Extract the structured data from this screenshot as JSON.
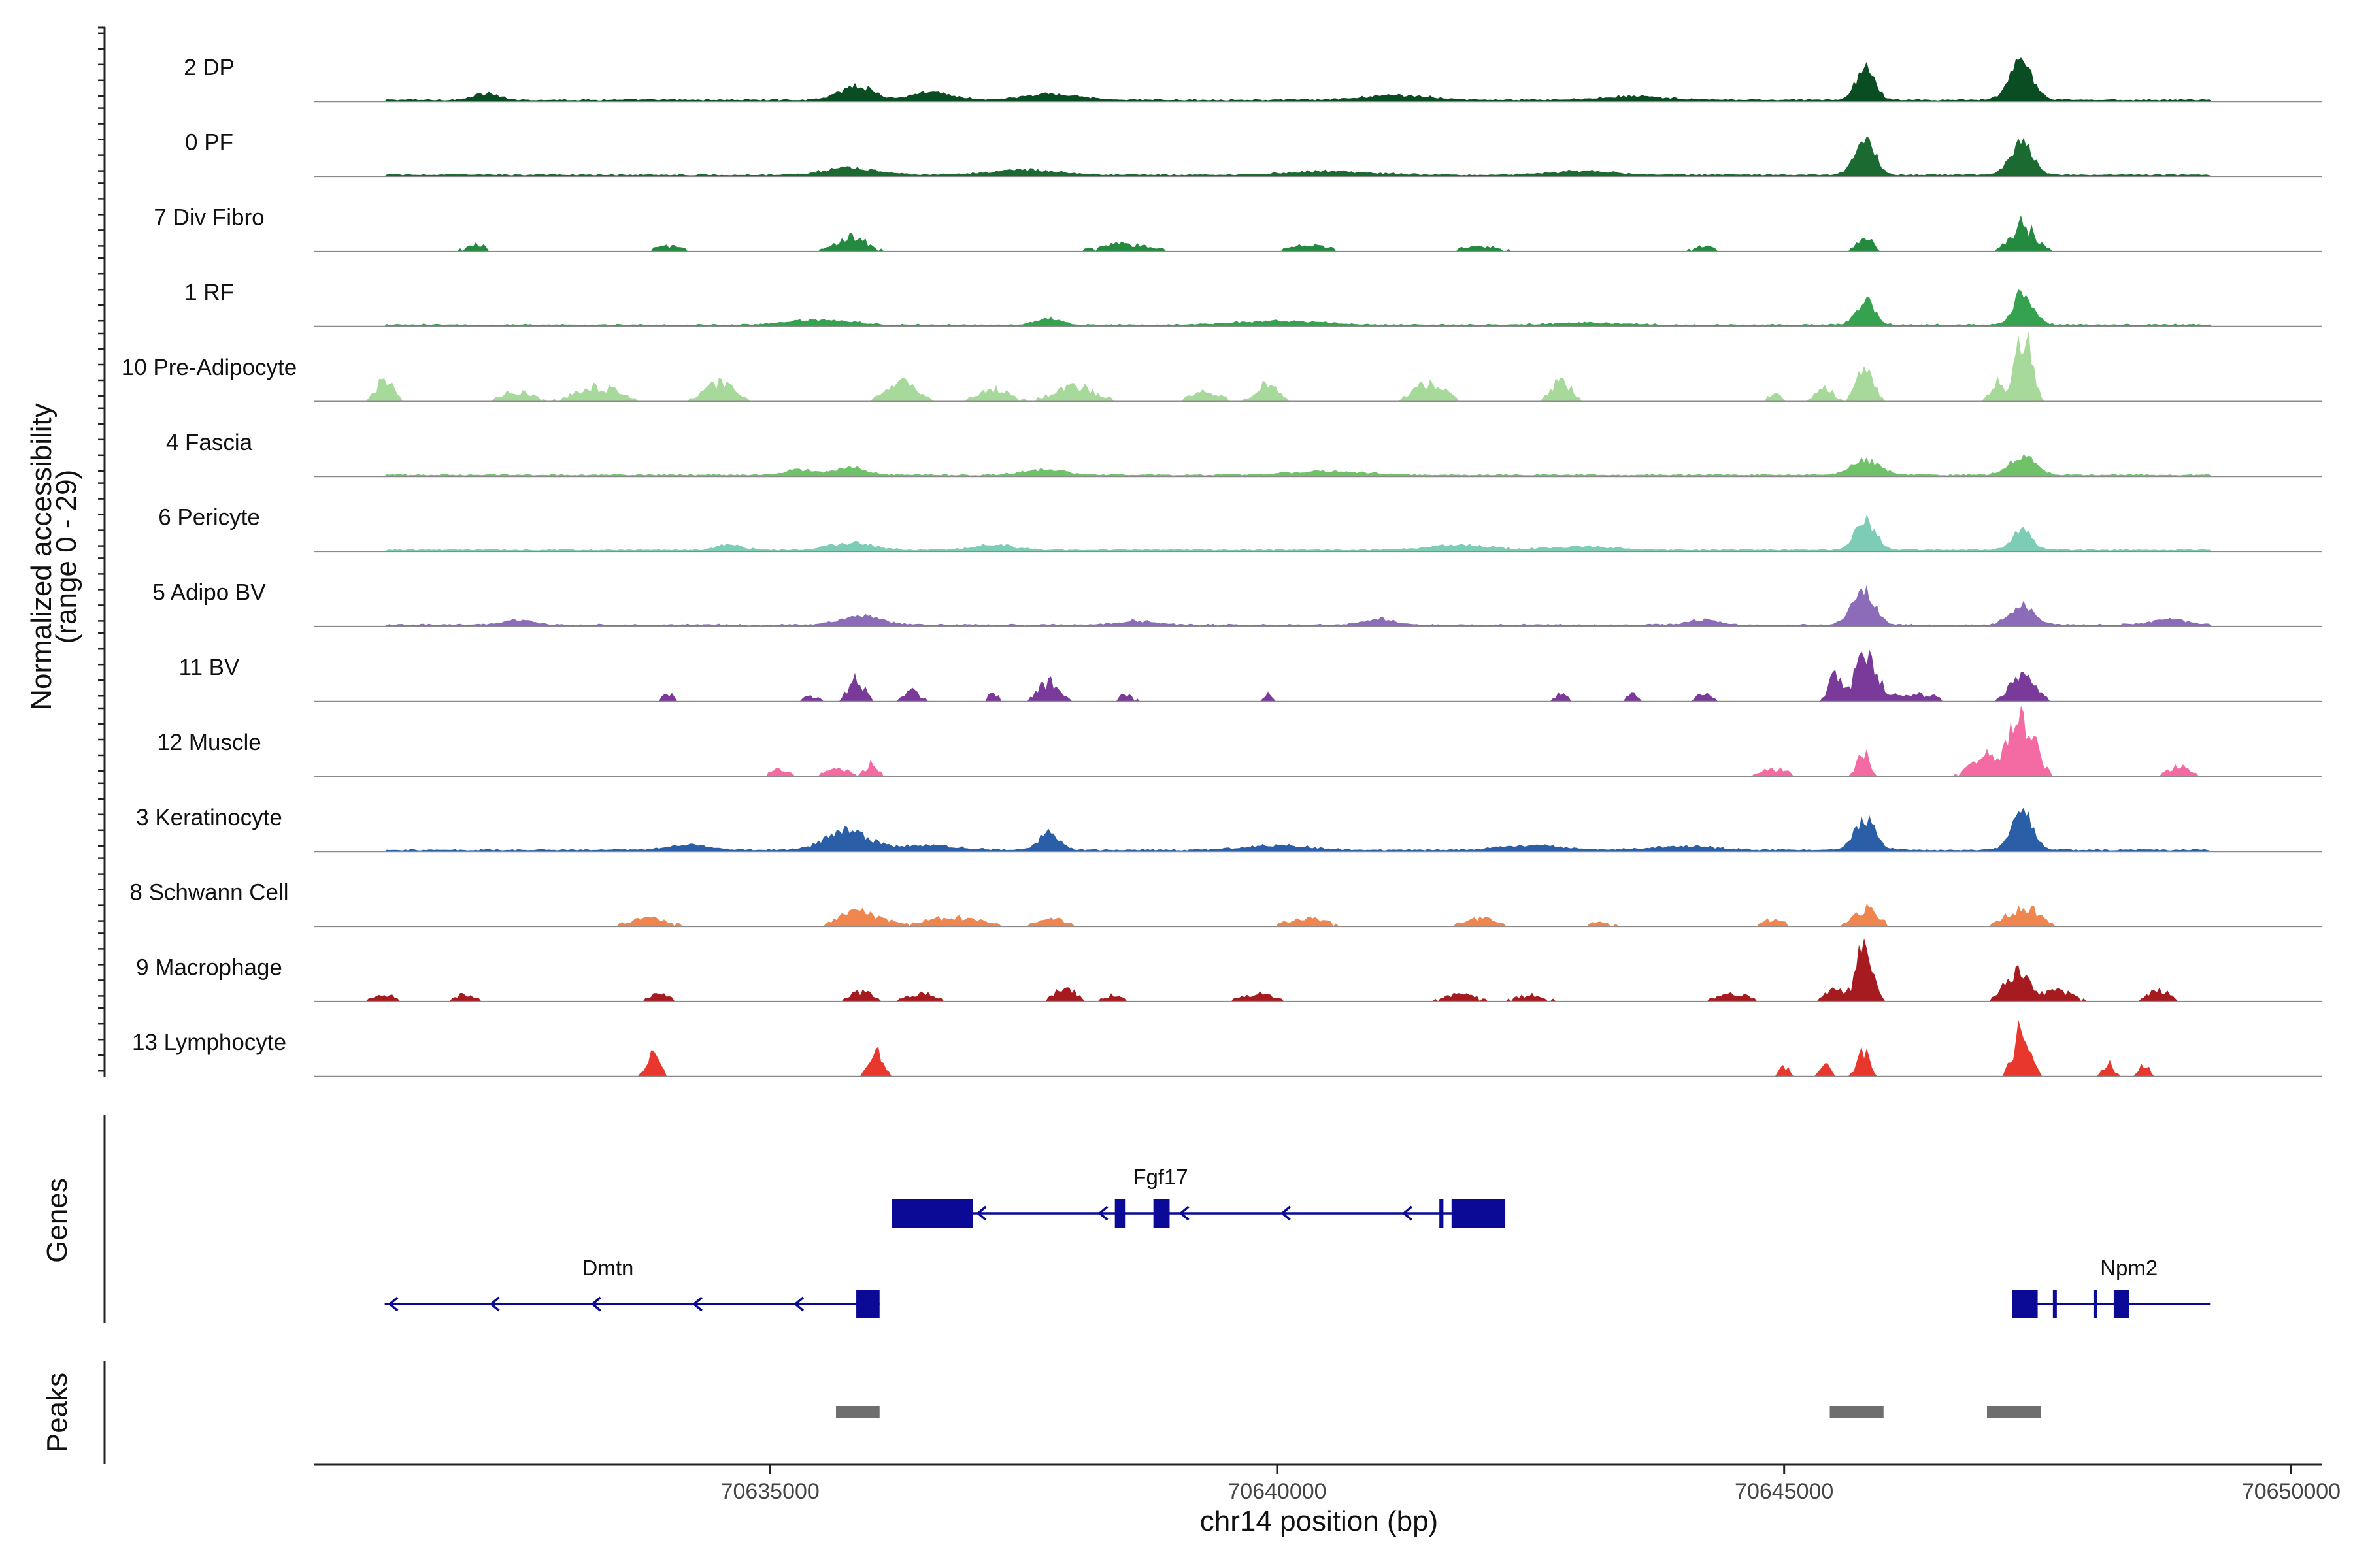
{
  "chart_data": {
    "type": "area",
    "ylabel_line1": "Normalized accessibility",
    "ylabel_line2": "(range 0 - 29)",
    "ylim": [
      0,
      29
    ],
    "xlabel": "chr14 position (bp)",
    "xlim": [
      70630500,
      70650300
    ],
    "x_ticks": [
      70635000,
      70640000,
      70645000,
      70650000
    ],
    "x_tick_labels": [
      "70635000",
      "70640000",
      "70645000",
      "70650000"
    ],
    "panel_labels": {
      "genes": "Genes",
      "peaks": "Peaks"
    },
    "tracks": [
      {
        "name": "2 DP",
        "color": "#0b4d22",
        "mode": "cont",
        "peaks": [
          [
            70645800,
            14,
            90
          ],
          [
            70647340,
            15,
            110
          ],
          [
            70635850,
            6,
            160
          ],
          [
            70636600,
            3,
            200
          ],
          [
            70632200,
            2.5,
            120
          ],
          [
            70637800,
            2.5,
            250
          ],
          [
            70641200,
            2,
            300
          ],
          [
            70643500,
            1.5,
            300
          ]
        ]
      },
      {
        "name": "0 PF",
        "color": "#1a6a32",
        "mode": "cont",
        "peaks": [
          [
            70645800,
            14,
            100
          ],
          [
            70647340,
            13,
            110
          ],
          [
            70635800,
            3,
            250
          ],
          [
            70637500,
            2,
            300
          ],
          [
            70640500,
            1.5,
            400
          ],
          [
            70643000,
            1.5,
            300
          ]
        ]
      },
      {
        "name": "7 Div Fibro",
        "color": "#238a3f",
        "mode": "spiky",
        "peaks": [
          [
            70647350,
            11,
            120
          ],
          [
            70645800,
            5,
            80
          ],
          [
            70635800,
            6,
            150
          ],
          [
            70632100,
            3,
            100
          ],
          [
            70638500,
            3,
            250
          ],
          [
            70640300,
            2.5,
            200
          ],
          [
            70642000,
            2,
            200
          ],
          [
            70644200,
            2,
            100
          ],
          [
            70634000,
            2,
            150
          ]
        ]
      },
      {
        "name": "1 RF",
        "color": "#35a24f",
        "mode": "cont",
        "peaks": [
          [
            70645800,
            10,
            90
          ],
          [
            70647360,
            13,
            100
          ],
          [
            70637750,
            3,
            120
          ],
          [
            70635500,
            2,
            300
          ],
          [
            70640000,
            1.5,
            400
          ],
          [
            70643000,
            1,
            300
          ]
        ]
      },
      {
        "name": "10 Pre-Adipocyte",
        "color": "#a6d99a",
        "mode": "spiky",
        "peaks": [
          [
            70647360,
            26,
            80
          ],
          [
            70645800,
            13,
            80
          ],
          [
            70647100,
            8,
            60
          ],
          [
            70631200,
            9,
            80
          ],
          [
            70634500,
            7,
            150
          ],
          [
            70636300,
            8,
            150
          ],
          [
            70638000,
            6,
            200
          ],
          [
            70639900,
            8,
            100
          ],
          [
            70641500,
            7,
            150
          ],
          [
            70642800,
            9,
            90
          ],
          [
            70633300,
            6,
            200
          ],
          [
            70645400,
            6,
            80
          ],
          [
            70632500,
            4,
            150
          ],
          [
            70637200,
            5,
            150
          ],
          [
            70639300,
            4,
            150
          ],
          [
            70644900,
            3,
            60
          ]
        ]
      },
      {
        "name": "4 Fascia",
        "color": "#6fc26a",
        "mode": "cont",
        "peaks": [
          [
            70645800,
            6,
            140
          ],
          [
            70647350,
            8,
            120
          ],
          [
            70635800,
            3,
            150
          ],
          [
            70635300,
            2,
            150
          ],
          [
            70637700,
            2,
            200
          ],
          [
            70640500,
            1.5,
            400
          ]
        ]
      },
      {
        "name": "6 Pericyte",
        "color": "#7dcdb6",
        "mode": "cont",
        "peaks": [
          [
            70645800,
            12,
            100
          ],
          [
            70647350,
            8,
            100
          ],
          [
            70635800,
            3,
            200
          ],
          [
            70634600,
            2.5,
            120
          ],
          [
            70637200,
            2,
            200
          ],
          [
            70641800,
            2,
            300
          ],
          [
            70643000,
            1.5,
            300
          ]
        ]
      },
      {
        "name": "5 Adipo BV",
        "color": "#8c6bb8",
        "mode": "cont",
        "peaks": [
          [
            70645780,
            14,
            110
          ],
          [
            70647350,
            8,
            120
          ],
          [
            70635900,
            4,
            200
          ],
          [
            70641000,
            2.5,
            150
          ],
          [
            70632500,
            2,
            150
          ],
          [
            70644200,
            2,
            150
          ],
          [
            70648800,
            2,
            200
          ],
          [
            70638600,
            1.5,
            200
          ]
        ]
      },
      {
        "name": "11 BV",
        "color": "#7a3a9a",
        "mode": "spiky",
        "peaks": [
          [
            70645800,
            16,
            120
          ],
          [
            70645500,
            10,
            60
          ],
          [
            70647350,
            10,
            120
          ],
          [
            70635850,
            9,
            80
          ],
          [
            70637750,
            8,
            100
          ],
          [
            70634000,
            3,
            60
          ],
          [
            70635400,
            2,
            80
          ],
          [
            70636400,
            4,
            80
          ],
          [
            70637200,
            3,
            60
          ],
          [
            70638500,
            2.5,
            80
          ],
          [
            70639900,
            3,
            40
          ],
          [
            70642800,
            3,
            60
          ],
          [
            70643500,
            3,
            60
          ],
          [
            70644200,
            3,
            80
          ],
          [
            70646300,
            3,
            200
          ]
        ]
      },
      {
        "name": "12 Muscle",
        "color": "#f46aa3",
        "mode": "spiky",
        "peaks": [
          [
            70647350,
            23,
            120
          ],
          [
            70647000,
            8,
            150
          ],
          [
            70645780,
            10,
            60
          ],
          [
            70635100,
            3,
            100
          ],
          [
            70635650,
            4,
            100
          ],
          [
            70636000,
            5,
            60
          ],
          [
            70644900,
            3,
            150
          ],
          [
            70648900,
            5,
            100
          ]
        ]
      },
      {
        "name": "3 Keratinocyte",
        "color": "#2a5ea6",
        "mode": "cont",
        "peaks": [
          [
            70645800,
            13,
            100
          ],
          [
            70647350,
            17,
            100
          ],
          [
            70635750,
            8,
            200
          ],
          [
            70637750,
            7,
            100
          ],
          [
            70634200,
            2,
            200
          ],
          [
            70636500,
            2,
            300
          ],
          [
            70640000,
            2,
            300
          ],
          [
            70642500,
            2,
            300
          ],
          [
            70644000,
            1.5,
            300
          ]
        ]
      },
      {
        "name": "8 Schwann Cell",
        "color": "#f0864f",
        "mode": "spiky",
        "peaks": [
          [
            70645800,
            7,
            120
          ],
          [
            70647350,
            8,
            150
          ],
          [
            70635900,
            6,
            200
          ],
          [
            70633800,
            3,
            200
          ],
          [
            70636800,
            4,
            250
          ],
          [
            70637800,
            3,
            150
          ],
          [
            70640300,
            3,
            200
          ],
          [
            70642000,
            3.5,
            150
          ],
          [
            70644900,
            3,
            100
          ],
          [
            70643200,
            2,
            100
          ]
        ]
      },
      {
        "name": "9 Macrophage",
        "color": "#a51b20",
        "mode": "spiky",
        "peaks": [
          [
            70645800,
            23,
            80
          ],
          [
            70645500,
            5,
            100
          ],
          [
            70647300,
            12,
            120
          ],
          [
            70647700,
            4,
            150
          ],
          [
            70637900,
            6,
            100
          ],
          [
            70631200,
            3,
            100
          ],
          [
            70632000,
            3,
            100
          ],
          [
            70633900,
            3,
            100
          ],
          [
            70635900,
            4,
            100
          ],
          [
            70636500,
            3,
            150
          ],
          [
            70638400,
            2.5,
            100
          ],
          [
            70639800,
            3,
            150
          ],
          [
            70641800,
            3,
            150
          ],
          [
            70642500,
            2.5,
            150
          ],
          [
            70644500,
            3,
            150
          ],
          [
            70648700,
            5,
            100
          ]
        ]
      },
      {
        "name": "13 Lymphocyte",
        "color": "#e8372d",
        "mode": "spiky",
        "peaks": [
          [
            70647350,
            20,
            80
          ],
          [
            70645780,
            10,
            60
          ],
          [
            70633850,
            10,
            60
          ],
          [
            70636050,
            10,
            70
          ],
          [
            70645000,
            4,
            50
          ],
          [
            70645400,
            5,
            50
          ],
          [
            70648200,
            5,
            50
          ],
          [
            70648550,
            5,
            50
          ]
        ]
      }
    ],
    "genes": [
      {
        "name": "Fgf17",
        "strand": "-",
        "start": 70636200,
        "end": 70642250,
        "row": 0,
        "label_x": 70638850,
        "exons": [
          [
            70636200,
            70637000
          ],
          [
            70638400,
            70638500
          ],
          [
            70638780,
            70638940
          ],
          [
            70641600,
            70641640
          ],
          [
            70641720,
            70642250
          ]
        ],
        "arrows": [
          70637050,
          70638250,
          70639050,
          70640050,
          70641250
        ]
      },
      {
        "name": "Dmtn",
        "strand": "-",
        "start": 70631200,
        "end": 70636080,
        "row": 1,
        "label_x": 70633400,
        "exons": [
          [
            70635850,
            70636080
          ]
        ],
        "arrows": [
          70631250,
          70632250,
          70633250,
          70634250,
          70635250
        ]
      },
      {
        "name": "Npm2",
        "strand": "+",
        "start": 70647250,
        "end": 70649200,
        "row": 1,
        "label_x": 70648400,
        "exons": [
          [
            70647250,
            70647500
          ],
          [
            70647650,
            70647680
          ],
          [
            70648050,
            70648080
          ],
          [
            70648250,
            70648400
          ]
        ],
        "arrows": []
      }
    ],
    "peak_regions": [
      [
        70635650,
        70636080
      ],
      [
        70645450,
        70645980
      ],
      [
        70647000,
        70647530
      ]
    ]
  }
}
